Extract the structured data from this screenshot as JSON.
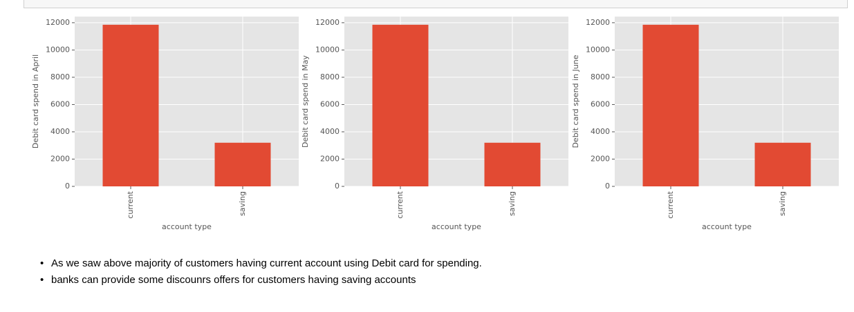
{
  "chart_data": [
    {
      "type": "bar",
      "ylabel": "Debit card spend in April",
      "xlabel": "account type",
      "categories": [
        "current",
        "saving"
      ],
      "values": [
        11850,
        3200
      ],
      "color": "#e24a33",
      "ylim": [
        0,
        12450
      ],
      "yticks": [
        0,
        2000,
        4000,
        6000,
        8000,
        10000,
        12000
      ],
      "grid": true
    },
    {
      "type": "bar",
      "ylabel": "Debit card spend in May",
      "xlabel": "account type",
      "categories": [
        "current",
        "saving"
      ],
      "values": [
        11850,
        3200
      ],
      "color": "#e24a33",
      "ylim": [
        0,
        12450
      ],
      "yticks": [
        0,
        2000,
        4000,
        6000,
        8000,
        10000,
        12000
      ],
      "grid": true
    },
    {
      "type": "bar",
      "ylabel": "Debit card spend in June",
      "xlabel": "account type",
      "categories": [
        "current",
        "saving"
      ],
      "values": [
        11850,
        3200
      ],
      "color": "#e24a33",
      "ylim": [
        0,
        12450
      ],
      "yticks": [
        0,
        2000,
        4000,
        6000,
        8000,
        10000,
        12000
      ],
      "grid": true
    }
  ],
  "notes": [
    "As we saw above majority of customers having current account using Debit card for spending.",
    "banks can provide some discounrs offers for customers having saving accounts"
  ]
}
